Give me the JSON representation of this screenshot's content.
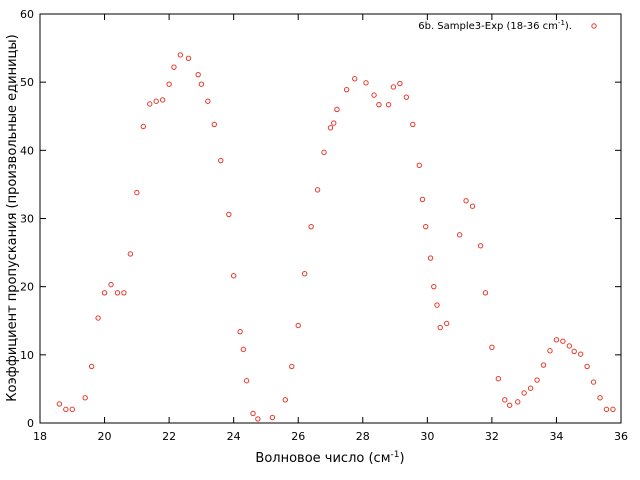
{
  "chart_data": {
    "type": "scatter",
    "xlabel": "Волновое число (см",
    "xlabel_sup": "-1",
    "xlabel_end": ")",
    "ylabel": "Коэффициент пропускания (произвольные единицы)",
    "xlim": [
      18,
      36
    ],
    "ylim": [
      0,
      60
    ],
    "xticks": [
      18,
      20,
      22,
      24,
      26,
      28,
      30,
      32,
      34,
      36
    ],
    "yticks": [
      0,
      10,
      20,
      30,
      40,
      50,
      60
    ],
    "grid": false,
    "legend_position": "top-right",
    "marker_color": "#e8392b",
    "series": [
      {
        "name": "6b. Sample3-Exp (18-36 cm",
        "name_sup": "-1",
        "name_end": ").",
        "points": [
          [
            18.6,
            2.8
          ],
          [
            18.8,
            2.0
          ],
          [
            19.0,
            2.0
          ],
          [
            19.4,
            3.7
          ],
          [
            19.6,
            8.3
          ],
          [
            19.8,
            15.4
          ],
          [
            20.0,
            19.1
          ],
          [
            20.2,
            20.3
          ],
          [
            20.4,
            19.1
          ],
          [
            20.6,
            19.1
          ],
          [
            20.8,
            24.8
          ],
          [
            21.0,
            33.8
          ],
          [
            21.2,
            43.5
          ],
          [
            21.4,
            46.8
          ],
          [
            21.6,
            47.2
          ],
          [
            21.8,
            47.4
          ],
          [
            22.0,
            49.7
          ],
          [
            22.15,
            52.2
          ],
          [
            22.35,
            54.0
          ],
          [
            22.6,
            53.5
          ],
          [
            22.9,
            51.1
          ],
          [
            23.0,
            49.7
          ],
          [
            23.2,
            47.2
          ],
          [
            23.4,
            43.8
          ],
          [
            23.6,
            38.5
          ],
          [
            23.85,
            30.6
          ],
          [
            24.0,
            21.6
          ],
          [
            24.2,
            13.4
          ],
          [
            24.3,
            10.8
          ],
          [
            24.4,
            6.2
          ],
          [
            24.6,
            1.4
          ],
          [
            24.75,
            0.6
          ],
          [
            25.2,
            0.8
          ],
          [
            25.6,
            3.4
          ],
          [
            25.8,
            8.3
          ],
          [
            26.0,
            14.3
          ],
          [
            26.2,
            21.9
          ],
          [
            26.4,
            28.8
          ],
          [
            26.6,
            34.2
          ],
          [
            26.8,
            39.7
          ],
          [
            27.0,
            43.3
          ],
          [
            27.1,
            44.0
          ],
          [
            27.2,
            46.0
          ],
          [
            27.5,
            48.9
          ],
          [
            27.75,
            50.5
          ],
          [
            28.1,
            49.9
          ],
          [
            28.35,
            48.1
          ],
          [
            28.5,
            46.7
          ],
          [
            28.8,
            46.7
          ],
          [
            28.95,
            49.3
          ],
          [
            29.15,
            49.8
          ],
          [
            29.35,
            47.8
          ],
          [
            29.55,
            43.8
          ],
          [
            29.75,
            37.8
          ],
          [
            29.85,
            32.8
          ],
          [
            29.95,
            28.8
          ],
          [
            30.1,
            24.2
          ],
          [
            30.2,
            20.0
          ],
          [
            30.3,
            17.3
          ],
          [
            30.4,
            14.0
          ],
          [
            30.6,
            14.6
          ],
          [
            31.0,
            27.6
          ],
          [
            31.2,
            32.6
          ],
          [
            31.4,
            31.8
          ],
          [
            31.65,
            26.0
          ],
          [
            31.8,
            19.1
          ],
          [
            32.0,
            11.1
          ],
          [
            32.2,
            6.5
          ],
          [
            32.4,
            3.4
          ],
          [
            32.55,
            2.6
          ],
          [
            32.8,
            3.1
          ],
          [
            33.0,
            4.4
          ],
          [
            33.2,
            5.1
          ],
          [
            33.4,
            6.3
          ],
          [
            33.6,
            8.5
          ],
          [
            33.8,
            10.6
          ],
          [
            34.0,
            12.2
          ],
          [
            34.2,
            12.0
          ],
          [
            34.4,
            11.3
          ],
          [
            34.55,
            10.5
          ],
          [
            34.75,
            10.1
          ],
          [
            34.95,
            8.3
          ],
          [
            35.15,
            6.0
          ],
          [
            35.35,
            3.7
          ],
          [
            35.55,
            2.0
          ],
          [
            35.75,
            2.0
          ]
        ]
      }
    ]
  }
}
